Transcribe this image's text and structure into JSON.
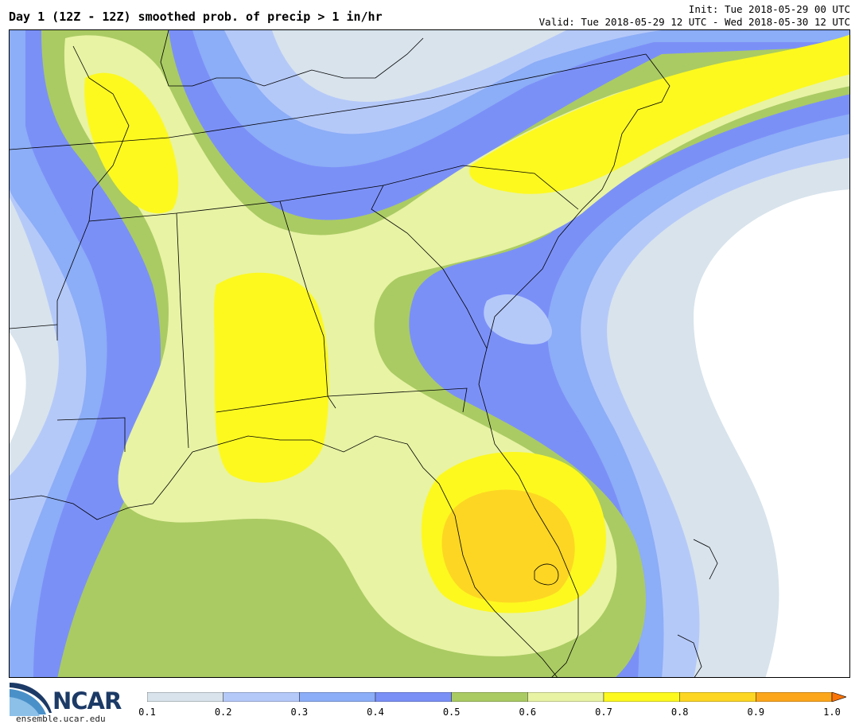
{
  "header": {
    "title": "Day 1 (12Z - 12Z) smoothed prob. of precip > 1 in/hr",
    "init": "Init: Tue 2018-05-29 00 UTC",
    "valid": "Valid: Tue 2018-05-29 12 UTC - Wed 2018-05-30 12 UTC"
  },
  "logo": {
    "name": "NCAR",
    "url": "ensemble.ucar.edu"
  },
  "legend": {
    "ticks": [
      "0.1",
      "0.2",
      "0.3",
      "0.4",
      "0.5",
      "0.6",
      "0.7",
      "0.8",
      "0.9",
      "1.0"
    ],
    "colors": [
      "#d8e3ec",
      "#b5c9f9",
      "#8cadf7",
      "#7b90f7",
      "#aacb63",
      "#e8f3a4",
      "#fdf91f",
      "#fdd623",
      "#fca61b",
      "#f97307"
    ]
  },
  "colors": {
    "c01": "#d8e3ec",
    "c02": "#b5c9f9",
    "c03": "#8cadf7",
    "c04": "#7b90f7",
    "c05": "#aacb63",
    "c06": "#e8f3a4",
    "c07": "#fdf91f",
    "c08": "#fdd623"
  }
}
